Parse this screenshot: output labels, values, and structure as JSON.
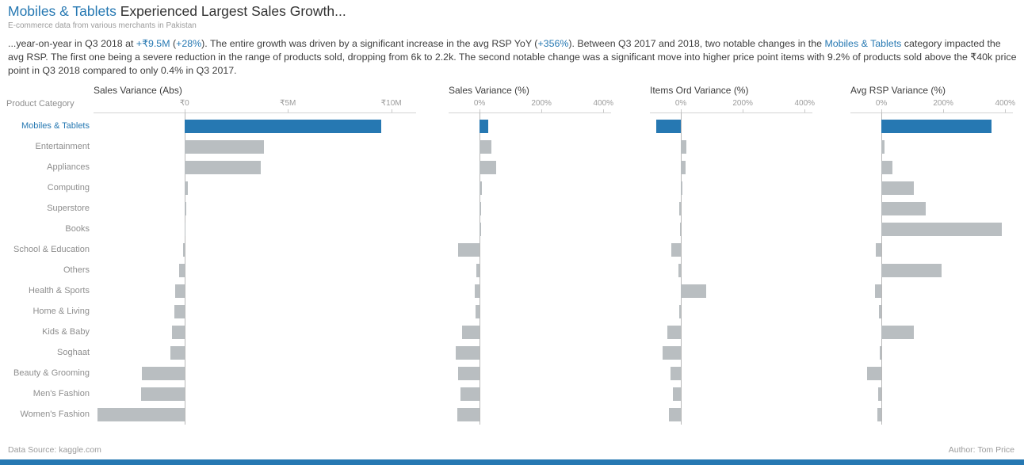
{
  "header": {
    "title_highlight": "Mobiles & Tablets",
    "title_rest": " Experienced Largest Sales Growth...",
    "subtitle": "E-commerce data from various merchants in Pakistan"
  },
  "narrative": {
    "segments": [
      {
        "text": "...year-on-year in Q3 2018 at ",
        "highlight": false
      },
      {
        "text": "+₹9.5M",
        "highlight": true
      },
      {
        "text": " (",
        "highlight": false
      },
      {
        "text": "+28%",
        "highlight": true
      },
      {
        "text": "). The entire growth was driven by a significant increase in the avg RSP YoY (",
        "highlight": false
      },
      {
        "text": "+356%",
        "highlight": true
      },
      {
        "text": "). Between Q3 2017 and 2018, two notable changes in the ",
        "highlight": false
      },
      {
        "text": "Mobiles & Tablets",
        "highlight": true
      },
      {
        "text": " category impacted the avg RSP. The first one being a severe reduction in the range of products sold, dropping from 6k to 2.2k. The second notable change was a significant move into higher price point items with 9.2% of products sold above the ₹40k price point in Q3 2018 compared to only 0.4% in Q3 2017.",
        "highlight": false
      }
    ]
  },
  "colors": {
    "accent": "#2678b2",
    "bar_gray": "#b9bec1"
  },
  "chart_data": {
    "type": "bar",
    "orientation": "horizontal",
    "row_header": "Product Category",
    "highlight_category": "Mobiles & Tablets",
    "categories": [
      "Mobiles & Tablets",
      "Entertainment",
      "Appliances",
      "Computing",
      "Superstore",
      "Books",
      "School & Education",
      "Others",
      "Health & Sports",
      "Home & Living",
      "Kids & Baby",
      "Soghaat",
      "Beauty & Grooming",
      "Men's Fashion",
      "Women's Fashion"
    ],
    "panels": [
      {
        "title": "Sales Variance (Abs)",
        "unit": "₹",
        "xlim": [
          -4400000,
          11200000
        ],
        "ticks": [
          {
            "value": 0,
            "label": "₹0"
          },
          {
            "value": 5000000,
            "label": "₹5M"
          },
          {
            "value": 10000000,
            "label": "₹10M"
          }
        ],
        "values": [
          9500000,
          3850000,
          3700000,
          150000,
          100000,
          30000,
          -60000,
          -270000,
          -450000,
          -500000,
          -600000,
          -700000,
          -2050000,
          -2100000,
          -4200000
        ]
      },
      {
        "title": "Sales Variance (%)",
        "unit": "%",
        "xlim": [
          -100,
          425
        ],
        "ticks": [
          {
            "value": 0,
            "label": "0%"
          },
          {
            "value": 200,
            "label": "200%"
          },
          {
            "value": 400,
            "label": "400%"
          }
        ],
        "values": [
          28,
          38,
          54,
          8,
          5,
          3,
          -69,
          -10,
          -15,
          -13,
          -56,
          -77,
          -69,
          -62,
          -72
        ]
      },
      {
        "title": "Items Ord Variance (%)",
        "unit": "%",
        "xlim": [
          -100,
          425
        ],
        "ticks": [
          {
            "value": 0,
            "label": "0%"
          },
          {
            "value": 200,
            "label": "200%"
          },
          {
            "value": 400,
            "label": "400%"
          }
        ],
        "values": [
          -80,
          18,
          15,
          3,
          -5,
          -3,
          -31,
          -8,
          82,
          -5,
          -44,
          -59,
          -33,
          -26,
          -38
        ]
      },
      {
        "title": "Avg RSP Variance (%)",
        "unit": "%",
        "xlim": [
          -100,
          425
        ],
        "ticks": [
          {
            "value": 0,
            "label": "0%"
          },
          {
            "value": 200,
            "label": "200%"
          },
          {
            "value": 400,
            "label": "400%"
          }
        ],
        "values": [
          356,
          10,
          36,
          105,
          144,
          390,
          -18,
          195,
          -20,
          -8,
          105,
          -5,
          -46,
          -10,
          -12
        ]
      }
    ]
  },
  "footer": {
    "left": "Data Source: kaggle.com",
    "right": "Author: Tom Price"
  }
}
